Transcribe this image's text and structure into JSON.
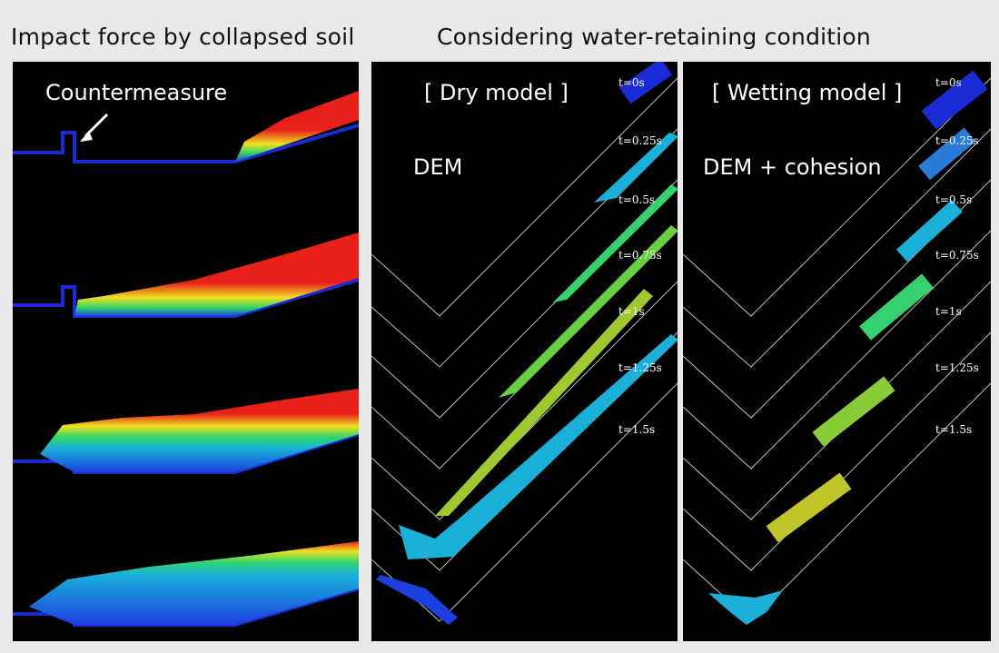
{
  "left_title": "Impact force by collapsed soil",
  "right_title": "Considering water-retaining condition",
  "impact_panel": {
    "countermeasure_label": "Countermeasure"
  },
  "dry_panel": {
    "title": "[ Dry model ]",
    "method": "DEM"
  },
  "wet_panel": {
    "title": "[ Wetting model ]",
    "method": "DEM + cohesion"
  },
  "time_labels": [
    "t=0s",
    "t=0.25s",
    "t=0.5s",
    "t=0.75s",
    "t=1s",
    "t=1.25s",
    "t=1.5s"
  ],
  "colors": {
    "background": "#e9e9e9",
    "panel": "#000000",
    "wall": "#1a2bd6",
    "soil_high": "#e8201a",
    "soil_mid": "#2fd66a",
    "soil_low": "#1d3fe0",
    "guide_line": "#bbbbbb"
  }
}
